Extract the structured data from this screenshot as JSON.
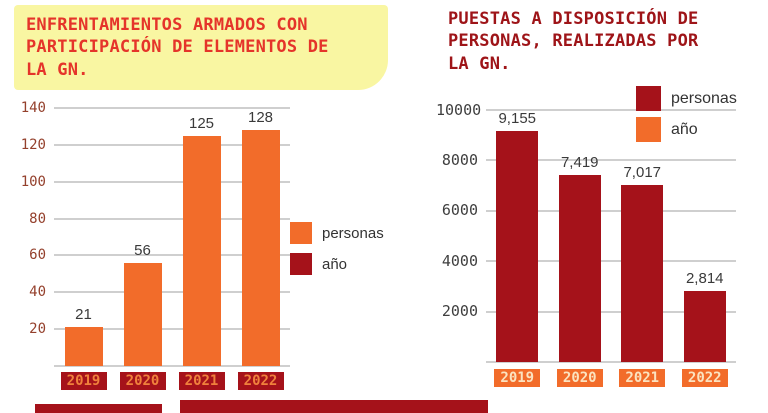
{
  "colors": {
    "background": "#FFFFFF",
    "orange": "#F26C2A",
    "dark_red": "#A5121A",
    "left_title_red": "#E5342A",
    "right_title_red": "#9E1418",
    "sticky_yellow": "#F9F6A2",
    "grid_gray": "#CFCFCF",
    "value_label_text": "#3A3A3A",
    "legend_text": "#333333"
  },
  "chart_data": [
    {
      "id": "left",
      "type": "bar",
      "title": "ENFRENTAMIENTOS ARMADOS CON\nPARTICIPACIÓN DE ELEMENTOS DE\nLA GN.",
      "categories": [
        "2019",
        "2020",
        "2021",
        "2022"
      ],
      "values": [
        21,
        56,
        125,
        128
      ],
      "value_labels": [
        "21",
        "56",
        "125",
        "128"
      ],
      "ylim": [
        0,
        140
      ],
      "yticks": [
        20,
        40,
        60,
        80,
        100,
        120,
        140
      ],
      "grid": true,
      "bar_color": "#F26C2A",
      "tick_text_color": "#94402C",
      "xlabel_bg": "#A5121A",
      "xlabel_text": "#F0813C",
      "legend_position": "middle-right",
      "legend": [
        {
          "label": "personas",
          "color": "#F26C2A"
        },
        {
          "label": "año",
          "color": "#A5121A"
        }
      ]
    },
    {
      "id": "right",
      "type": "bar",
      "title": "PUESTAS A DISPOSICIÓN DE\nPERSONAS, REALIZADAS POR\nLA GN.",
      "categories": [
        "2019",
        "2020",
        "2021",
        "2022"
      ],
      "values": [
        9155,
        7419,
        7017,
        2814
      ],
      "value_labels": [
        "9,155",
        "7,419",
        "7,017",
        "2,814"
      ],
      "ylim": [
        0,
        10000
      ],
      "yticks": [
        2000,
        4000,
        6000,
        8000,
        10000
      ],
      "grid": true,
      "bar_color": "#A5121A",
      "tick_text_color": "#3F3F3F",
      "xlabel_bg": "#F26C2A",
      "xlabel_text": "#FBE3C0",
      "legend_position": "top-right",
      "legend": [
        {
          "label": "personas",
          "color": "#A5121A"
        },
        {
          "label": "año",
          "color": "#F26C2A"
        }
      ]
    }
  ],
  "footer": {
    "strips": [
      {
        "color": "#A5121A"
      },
      {
        "color": "#A5121A"
      }
    ]
  }
}
